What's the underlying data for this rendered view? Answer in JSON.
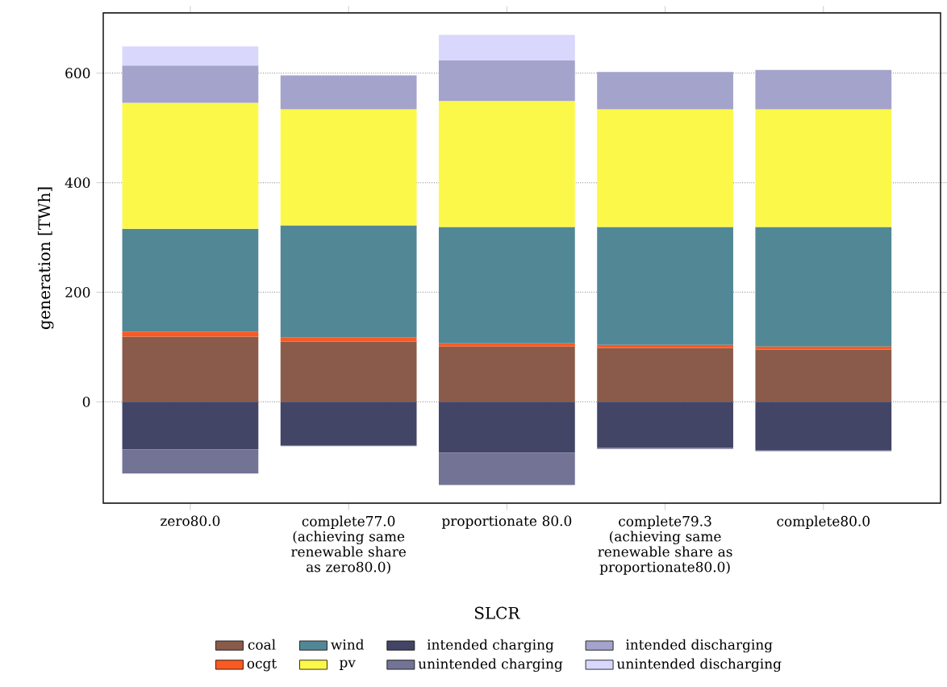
{
  "chart_data": {
    "type": "bar",
    "stacked": true,
    "xlabel": "SLCR",
    "ylabel": "generation [TWh]",
    "categories": [
      "zero80.0",
      "complete77.0 (achieving same renewable share as zero80.0)",
      "proportionate 80.0",
      "complete79.3 (achieving same renewable share as proportionate80.0)",
      "complete80.0"
    ],
    "series": [
      {
        "name": "coal",
        "color": "#8a5b4a",
        "values": [
          119,
          110,
          101,
          98,
          95
        ]
      },
      {
        "name": "ocgt",
        "color": "#f95a22",
        "values": [
          9,
          8,
          6,
          6,
          6
        ]
      },
      {
        "name": "wind",
        "color": "#528796",
        "values": [
          188,
          204,
          212,
          215,
          218
        ]
      },
      {
        "name": "pv",
        "color": "#fcf84a",
        "values": [
          230,
          212,
          230,
          215,
          215
        ]
      },
      {
        "name": "intended charging",
        "color": "#424566",
        "values": [
          -87,
          -79,
          -93,
          -84,
          -88
        ]
      },
      {
        "name": "unintended charging",
        "color": "#737396",
        "values": [
          -44,
          -2,
          -59,
          -2,
          -2
        ]
      },
      {
        "name": "intended discharging",
        "color": "#a3a3cb",
        "values": [
          68,
          62,
          74,
          68,
          72
        ]
      },
      {
        "name": "unintended discharging",
        "color": "#d9d7fc",
        "values": [
          35,
          null,
          47,
          null,
          null
        ]
      }
    ],
    "ylim": [
      -185,
      710
    ],
    "yticks": [
      0,
      200,
      400,
      600
    ],
    "grid": "y",
    "legend": "bottom"
  }
}
